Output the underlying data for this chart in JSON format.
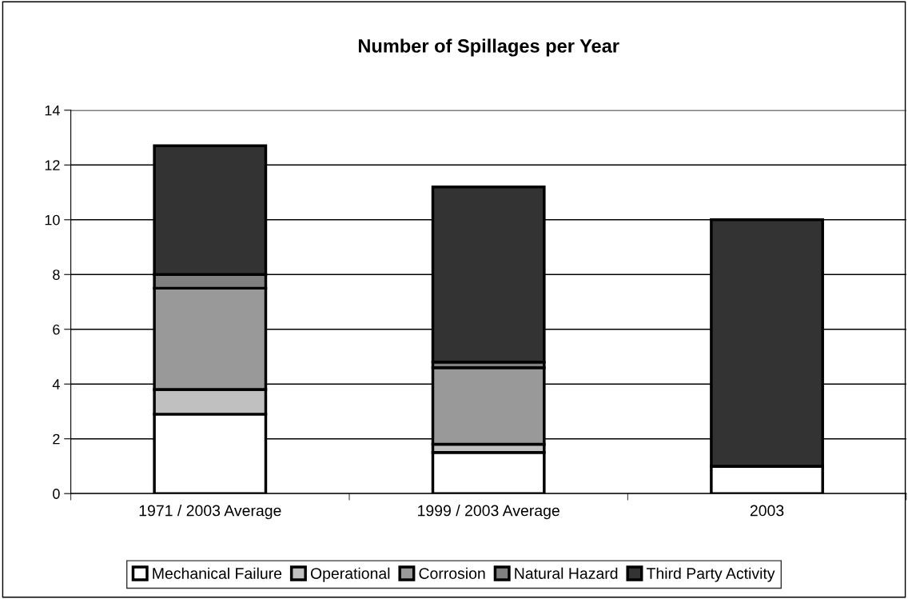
{
  "chart_data": {
    "type": "bar",
    "title": "Number of Spillages per Year",
    "stacked": true,
    "categories": [
      "1971 / 2003 Average",
      "1999 / 2003 Average",
      "2003"
    ],
    "series": [
      {
        "name": "Mechanical Failure",
        "color": "#ffffff",
        "values": [
          2.9,
          1.5,
          1.0
        ]
      },
      {
        "name": "Operational",
        "color": "#c0c0c0",
        "values": [
          0.9,
          0.3,
          0
        ]
      },
      {
        "name": "Corrosion",
        "color": "#999999",
        "values": [
          3.7,
          2.8,
          0
        ]
      },
      {
        "name": "Natural Hazard",
        "color": "#808080",
        "values": [
          0.5,
          0.2,
          0
        ]
      },
      {
        "name": "Third Party Activity",
        "color": "#333333",
        "values": [
          4.7,
          6.4,
          9.0
        ]
      }
    ],
    "ylim": [
      0,
      14
    ],
    "yticks": [
      0,
      2,
      4,
      6,
      8,
      10,
      12,
      14
    ],
    "grid": "y",
    "legend": "bottom"
  }
}
